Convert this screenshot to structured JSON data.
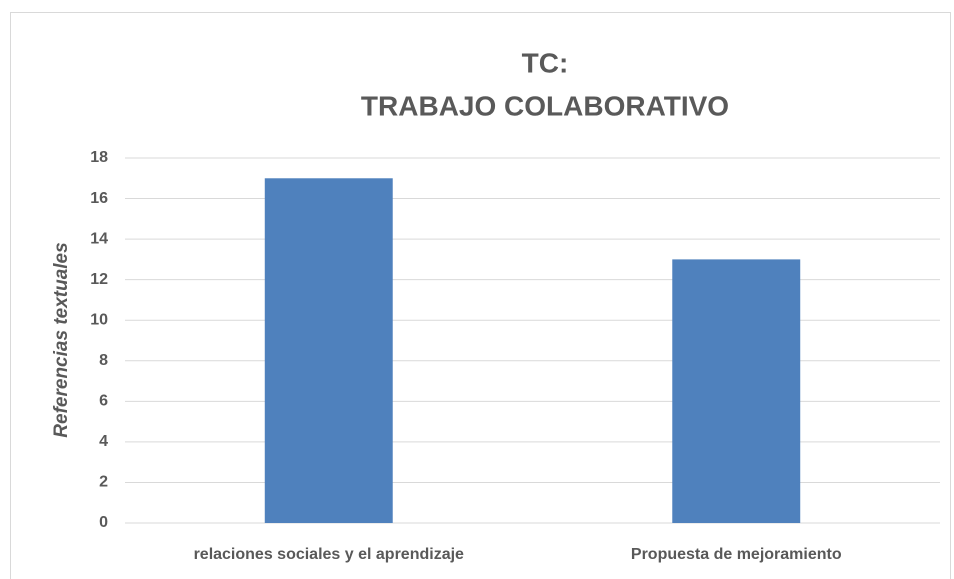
{
  "chart_data": {
    "type": "bar",
    "title": [
      "TC:",
      "TRABAJO COLABORATIVO"
    ],
    "y_label": "Referencias textuales",
    "categories": [
      "relaciones sociales y el aprendizaje",
      "Propuesta de mejoramiento"
    ],
    "values": [
      17,
      13
    ],
    "color": "#4f81bd",
    "ylim": [
      0,
      18
    ],
    "yticks": [
      0,
      2,
      4,
      6,
      8,
      10,
      12,
      14,
      16,
      18
    ],
    "grid": true
  }
}
